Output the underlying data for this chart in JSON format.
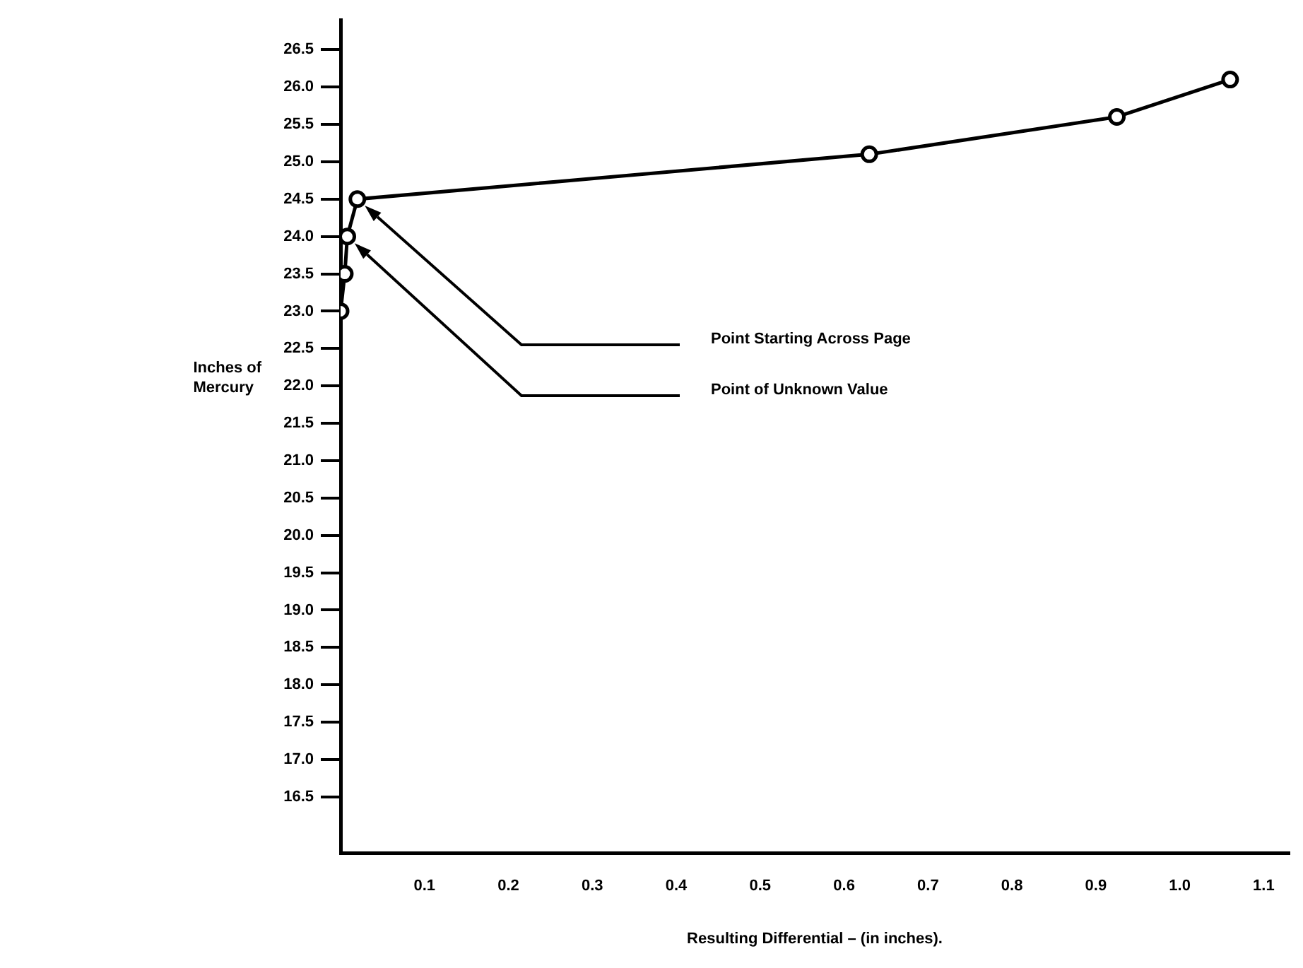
{
  "chart_data": {
    "type": "line",
    "xlabel": "Resulting Differential – (in inches).",
    "ylabel": "Inches of Mercury",
    "x": [
      0,
      0.005,
      0.008,
      0.02,
      0.63,
      0.925,
      1.06
    ],
    "values": [
      23.0,
      23.5,
      24.0,
      24.5,
      25.1,
      25.6,
      26.1
    ],
    "color": "#000000",
    "marker": "circle",
    "line_style": "solid",
    "grid": false,
    "legend": false,
    "xlim": [
      0,
      1.13
    ],
    "xticks": [
      0.1,
      0.2,
      0.3,
      0.4,
      0.5,
      0.6,
      0.7,
      0.8,
      0.9,
      {
        "value": 1,
        "label": "1.0"
      },
      1.1
    ],
    "ylim": [
      15.75,
      26.9
    ],
    "yticks": [
      16.5,
      {
        "value": 17,
        "label": "17.0"
      },
      17.5,
      {
        "value": 18,
        "label": "18.0"
      },
      18.5,
      {
        "value": 19,
        "label": "19.0"
      },
      19.5,
      {
        "value": 20,
        "label": "20.0"
      },
      20.5,
      {
        "value": 21,
        "label": "21.0"
      },
      21.5,
      {
        "value": 22,
        "label": "22.0"
      },
      22.5,
      {
        "value": 23,
        "label": "23.0"
      },
      23.5,
      {
        "value": 24,
        "label": "24.0"
      },
      24.5,
      {
        "value": 25,
        "label": "25.0"
      },
      25.5,
      {
        "value": 26,
        "label": "26.0"
      },
      26.5
    ],
    "annotations": [
      "Point Starting Across Page",
      "Point of Unknown Value"
    ]
  }
}
